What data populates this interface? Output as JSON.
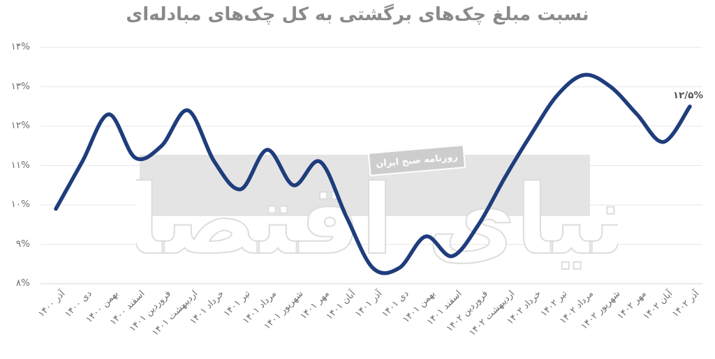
{
  "title": "نسبت مبلغ چک‌های برگشتی به کل چک‌های مبادله‌ای",
  "watermark": {
    "logo_text": "دنیای اقتصاد",
    "badge_text": "روزنامه صبح ایران"
  },
  "annotation": {
    "last_value_label": "۱۲/۵%"
  },
  "colors": {
    "line": "#1f3d7c",
    "title_text": "#8a8a8a",
    "axis_text": "#6d6d6d",
    "gridline": "#e7e7e7",
    "axis_line": "#d6d6d6",
    "watermark_band": "#e4e4e4",
    "badge_bg": "#cdcdcd",
    "badge_text": "#ffffff"
  },
  "y_axis": {
    "tick_labels": [
      "۱۴%",
      "۱۳%",
      "۱۲%",
      "۱۱%",
      "۱۰%",
      "۹%",
      "۸%"
    ],
    "tick_values": [
      14,
      13,
      12,
      11,
      10,
      9,
      8
    ]
  },
  "chart_data": {
    "type": "line",
    "title": "نسبت مبلغ چک‌های برگشتی به کل چک‌های مبادله‌ای",
    "categories": [
      "آذر ۱۴۰۰",
      "دی ۱۴۰۰",
      "بهمن ۱۴۰۰",
      "اسفند ۱۴۰۰",
      "فروردین ۱۴۰۱",
      "اردیبهشت ۱۴۰۱",
      "خرداد ۱۴۰۱",
      "تیر ۱۴۰۱",
      "مرداد ۱۴۰۱",
      "شهریور ۱۴۰۱",
      "مهر ۱۴۰۱",
      "آبان ۱۴۰۱",
      "آذر ۱۴۰۱",
      "دی ۱۴۰۱",
      "بهمن ۱۴۰۱",
      "اسفند ۱۴۰۱",
      "فروردین ۱۴۰۲",
      "اردیبهشت ۱۴۰۲",
      "خرداد ۱۴۰۲",
      "تیر ۱۴۰۲",
      "مرداد ۱۴۰۲",
      "شهریور ۱۴۰۲",
      "مهر ۱۴۰۲",
      "آبان ۱۴۰۲",
      "آذر ۱۴۰۲"
    ],
    "values": [
      9.9,
      11.1,
      12.3,
      11.2,
      11.5,
      12.4,
      11.1,
      10.4,
      11.4,
      10.5,
      11.1,
      9.7,
      8.4,
      8.4,
      9.2,
      8.7,
      9.5,
      10.7,
      11.8,
      12.8,
      13.3,
      13.0,
      12.3,
      11.6,
      12.5
    ],
    "ylim": [
      8,
      14
    ],
    "yticks": [
      8,
      9,
      10,
      11,
      12,
      13,
      14
    ],
    "grid": "horizontal",
    "legend": "none",
    "xlabel": "",
    "ylabel": "",
    "last_point_label": "۱۲/۵%"
  }
}
